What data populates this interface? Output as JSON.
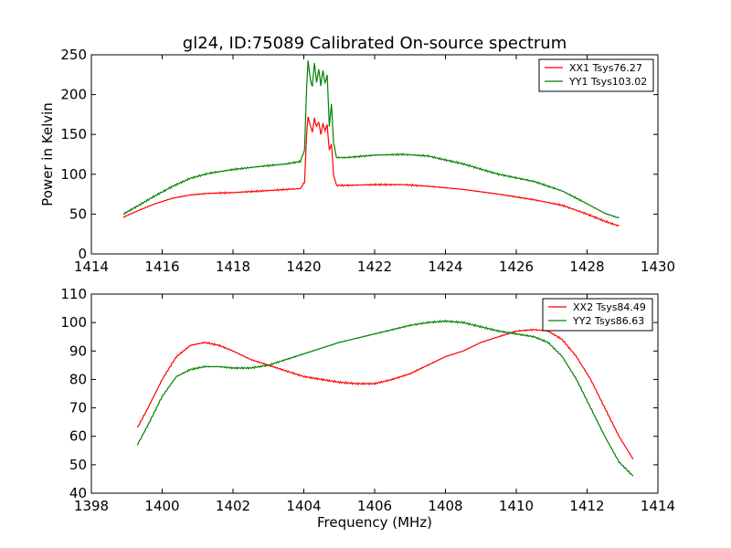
{
  "title": "gl24, ID:75089 Calibrated On-source spectrum",
  "colors": {
    "red": "#ff0000",
    "green": "#008000",
    "axis": "#000000",
    "background": "#ffffff"
  },
  "chart_data": [
    {
      "type": "line",
      "title": "gl24, ID:75089 Calibrated On-source spectrum",
      "xlabel": "",
      "ylabel": "Power in Kelvin",
      "xlim": [
        1414,
        1430
      ],
      "ylim": [
        0,
        250
      ],
      "xticks": [
        "1414",
        "1416",
        "1418",
        "1420",
        "1422",
        "1424",
        "1426",
        "1428",
        "1430"
      ],
      "yticks": [
        "0",
        "50",
        "100",
        "150",
        "200",
        "250"
      ],
      "grid": false,
      "legend_position": "top-right",
      "series": [
        {
          "name": "XX1 Tsys76.27",
          "color": "#ff0000",
          "x": [
            1414.9,
            1415.3,
            1415.8,
            1416.3,
            1416.8,
            1417.3,
            1418.0,
            1418.8,
            1419.5,
            1419.9,
            1420.02,
            1420.08,
            1420.12,
            1420.18,
            1420.24,
            1420.3,
            1420.36,
            1420.42,
            1420.48,
            1420.54,
            1420.6,
            1420.66,
            1420.72,
            1420.78,
            1420.84,
            1420.92,
            1421.2,
            1422.0,
            1422.8,
            1423.5,
            1424.5,
            1425.5,
            1426.5,
            1427.3,
            1428.0,
            1428.5,
            1428.9
          ],
          "values": [
            46,
            54,
            63,
            70,
            74,
            76,
            77,
            79,
            81,
            82,
            90,
            150,
            172,
            162,
            153,
            170,
            160,
            166,
            150,
            163,
            155,
            162,
            130,
            138,
            100,
            86,
            86,
            87,
            87,
            85,
            81,
            75,
            68,
            61,
            50,
            41,
            35
          ]
        },
        {
          "name": "YY1 Tsys103.02",
          "color": "#008000",
          "x": [
            1414.9,
            1415.3,
            1415.8,
            1416.3,
            1416.8,
            1417.3,
            1418.0,
            1418.8,
            1419.5,
            1419.9,
            1420.02,
            1420.08,
            1420.12,
            1420.18,
            1420.24,
            1420.3,
            1420.36,
            1420.42,
            1420.48,
            1420.54,
            1420.6,
            1420.66,
            1420.72,
            1420.78,
            1420.84,
            1420.92,
            1421.2,
            1422.0,
            1422.8,
            1423.5,
            1424.5,
            1425.5,
            1426.5,
            1427.3,
            1428.0,
            1428.5,
            1428.9
          ],
          "values": [
            50,
            60,
            73,
            85,
            95,
            101,
            106,
            110,
            113,
            116,
            130,
            210,
            243,
            220,
            210,
            240,
            215,
            232,
            212,
            230,
            214,
            225,
            160,
            188,
            140,
            121,
            121,
            124,
            125,
            123,
            113,
            100,
            91,
            79,
            63,
            51,
            45
          ]
        }
      ]
    },
    {
      "type": "line",
      "title": "",
      "xlabel": "Frequency (MHz)",
      "ylabel": "",
      "xlim": [
        1398,
        1414
      ],
      "ylim": [
        40,
        110
      ],
      "xticks": [
        "1398",
        "1400",
        "1402",
        "1404",
        "1406",
        "1408",
        "1410",
        "1412",
        "1414"
      ],
      "yticks": [
        "40",
        "50",
        "60",
        "70",
        "80",
        "90",
        "100",
        "110"
      ],
      "grid": false,
      "legend_position": "top-right",
      "series": [
        {
          "name": "XX2 Tsys84.49",
          "color": "#ff0000",
          "x": [
            1399.3,
            1399.6,
            1400.0,
            1400.4,
            1400.8,
            1401.2,
            1401.6,
            1402.0,
            1402.5,
            1403.0,
            1403.5,
            1404.0,
            1404.5,
            1405.0,
            1405.5,
            1406.0,
            1406.5,
            1407.0,
            1407.5,
            1408.0,
            1408.5,
            1409.0,
            1409.5,
            1410.0,
            1410.5,
            1410.9,
            1411.3,
            1411.7,
            1412.1,
            1412.5,
            1412.9,
            1413.3
          ],
          "values": [
            63,
            70,
            80,
            88,
            92,
            93,
            92,
            90,
            87,
            85,
            83,
            81,
            80,
            79,
            78.5,
            78.5,
            80,
            82,
            85,
            88,
            90,
            93,
            95,
            97,
            97.5,
            97,
            94,
            88,
            80,
            70,
            60,
            52
          ]
        },
        {
          "name": "YY2 Tsys86.63",
          "color": "#008000",
          "x": [
            1399.3,
            1399.6,
            1400.0,
            1400.4,
            1400.8,
            1401.2,
            1401.6,
            1402.0,
            1402.5,
            1403.0,
            1403.5,
            1404.0,
            1404.5,
            1405.0,
            1405.5,
            1406.0,
            1406.5,
            1407.0,
            1407.5,
            1408.0,
            1408.5,
            1409.0,
            1409.5,
            1410.0,
            1410.5,
            1410.9,
            1411.3,
            1411.7,
            1412.1,
            1412.5,
            1412.9,
            1413.3
          ],
          "values": [
            57,
            64,
            74,
            81,
            83.5,
            84.5,
            84.5,
            84,
            84,
            85,
            87,
            89,
            91,
            93,
            94.5,
            96,
            97.5,
            99,
            100,
            100.5,
            100,
            98.5,
            97,
            96,
            95,
            93,
            88,
            80,
            70,
            60,
            51,
            46
          ]
        }
      ]
    }
  ]
}
